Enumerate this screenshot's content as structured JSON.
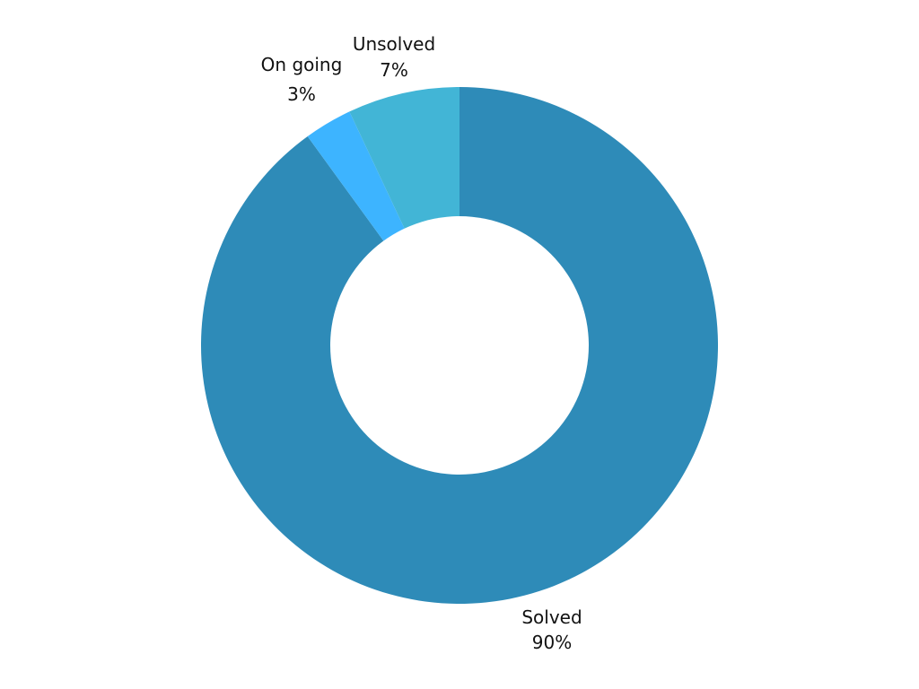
{
  "chart_data": {
    "type": "pie",
    "variant": "donut",
    "title": "",
    "start_angle_deg": 0,
    "direction": "clockwise",
    "slices": [
      {
        "label": "Solved",
        "value": 90,
        "value_label": "90%",
        "color": "#2E8BB8"
      },
      {
        "label": "On going",
        "value": 3,
        "value_label": "3%",
        "color": "#3DB4FF"
      },
      {
        "label": "Unsolved",
        "value": 7,
        "value_label": "7%",
        "color": "#42B5D6"
      }
    ]
  }
}
